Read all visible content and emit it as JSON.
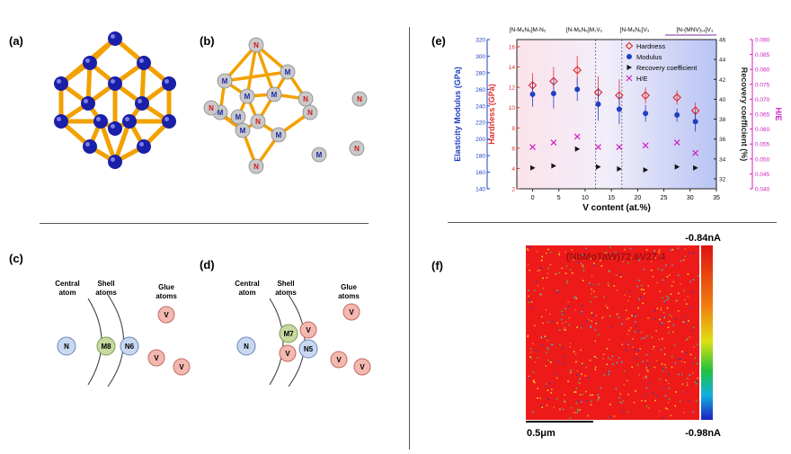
{
  "panels": {
    "a": "(a)",
    "b": "(b)",
    "c": "(c)",
    "d": "(d)",
    "e": "(e)",
    "f": "(f)"
  },
  "cluster_b": {
    "m_label": "M",
    "n_label": "N"
  },
  "diagram_c": {
    "central_label": [
      "Central",
      "atom"
    ],
    "shell_label": [
      "Shell",
      "atoms"
    ],
    "glue_label": [
      "Glue",
      "atoms"
    ],
    "central_atom": "N",
    "shell_atoms": [
      "M8",
      "N6"
    ],
    "glue_atoms": [
      "V",
      "V",
      "V"
    ]
  },
  "diagram_d": {
    "central_label": [
      "Central",
      "atom"
    ],
    "shell_label": [
      "Shell",
      "atoms"
    ],
    "glue_label": [
      "Glue",
      "atoms"
    ],
    "central_atom": "N",
    "shell_atoms": [
      "M7",
      "V",
      "V",
      "N5"
    ],
    "glue_atoms": [
      "V",
      "V",
      "V"
    ]
  },
  "colors": {
    "metal_blue": "#1a1fa8",
    "rod_gold": "#f2a100",
    "n_atom": "#c8d8f0",
    "m_atom": "#c7d9a0",
    "v_atom": "#f3b8b0",
    "hardness": "#e03030",
    "modulus": "#1f3fbf",
    "ratio": "#d020c0"
  },
  "chart_data": {
    "type": "scatter",
    "xlabel": "V content (at.%)",
    "ylabel_left_outer": "Elasticity Modulus (GPa)",
    "ylabel_left_inner": "Hardness (GPa)",
    "ylabel_right_inner": "Recovery coefficient (%)",
    "ylabel_right_outer": "H/E",
    "x_ticks": [
      "0",
      "5",
      "10",
      "15",
      "20",
      "25",
      "30",
      "35"
    ],
    "xlim": [
      -3,
      35
    ],
    "modulus_ticks": [
      "140",
      "160",
      "180",
      "200",
      "220",
      "240",
      "260",
      "280",
      "300",
      "320"
    ],
    "hardness_ticks": [
      "2",
      "4",
      "6",
      "8",
      "10",
      "12",
      "14",
      "16"
    ],
    "recovery_ticks": [
      "32",
      "34",
      "36",
      "38",
      "40",
      "42",
      "44",
      "46"
    ],
    "he_ticks": [
      "0.040",
      "0.045",
      "0.050",
      "0.055",
      "0.060",
      "0.065",
      "0.070",
      "0.075",
      "0.080",
      "0.085",
      "0.090"
    ],
    "region_labels": [
      "[N-M₈N₆]M-N₂",
      "[N-M₈N₆]M₁V₂",
      "[N-M₈N₆]V₃",
      "[N-(MNV)₁₄]V₃"
    ],
    "legend": [
      "Hardness",
      "Modulus",
      "Recovery coefficient",
      "H/E"
    ],
    "hardness": {
      "x": [
        0,
        4,
        8.5,
        12.5,
        16.5,
        21.5,
        27.5,
        31
      ],
      "y": [
        12.2,
        12.6,
        13.7,
        11.5,
        11.2,
        11.2,
        11.0,
        9.7
      ],
      "err": [
        1.2,
        1.4,
        1.4,
        1.6,
        1.6,
        0.8,
        0.7,
        0.8
      ]
    },
    "modulus": {
      "x": [
        0,
        4,
        8.5,
        12.5,
        16.5,
        21.5,
        27.5,
        31
      ],
      "y": [
        254,
        255,
        260,
        242,
        236,
        231,
        229,
        221
      ],
      "err": [
        15,
        18,
        14,
        20,
        18,
        10,
        8,
        12
      ]
    },
    "recovery": {
      "x": [
        0,
        4,
        8.5,
        12.5,
        16.5,
        21.5,
        27.5,
        31
      ],
      "y": [
        33.1,
        33.3,
        35.0,
        33.2,
        33.0,
        32.9,
        33.2,
        33.1
      ]
    },
    "he": {
      "x": [
        0,
        4,
        8.5,
        12.5,
        16.5,
        21.5,
        27.5,
        31
      ],
      "y": [
        0.054,
        0.0555,
        0.0575,
        0.054,
        0.054,
        0.0545,
        0.0555,
        0.052
      ]
    }
  },
  "afm": {
    "title": "(NbMoTaW)72.6V27.4",
    "top_value": "-0.84nA",
    "bottom_value": "-0.98nA",
    "scale": "0.5μm"
  }
}
